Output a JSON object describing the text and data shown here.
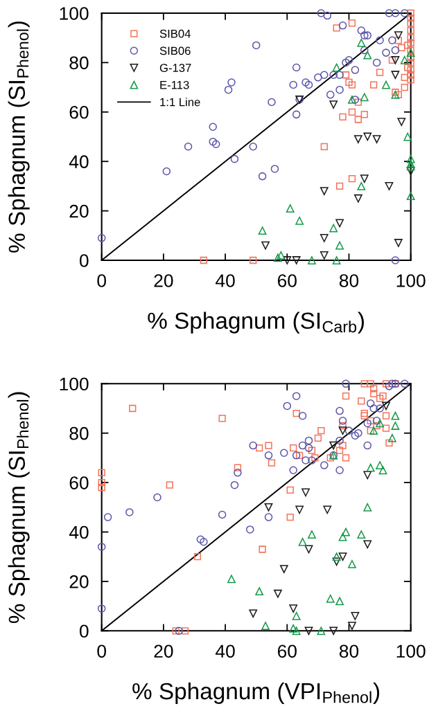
{
  "chart_data": [
    {
      "type": "scatter",
      "xlabel": "% Sphagnum (SI$_{Carb}$)",
      "ylabel": "% Sphagnum (SI$_{Phenol}$)",
      "xlim": [
        0,
        100
      ],
      "ylim": [
        0,
        100
      ],
      "xticks": [
        0,
        20,
        40,
        60,
        80,
        100
      ],
      "yticks": [
        0,
        20,
        40,
        60,
        80,
        100
      ],
      "legend": "top left",
      "series": [
        {
          "name": "SIB04",
          "color": "#f4735a",
          "marker": "square",
          "x": [
            76,
            81,
            100,
            100,
            100,
            100,
            100,
            100,
            100,
            100,
            100,
            100,
            100,
            100,
            96,
            97,
            99,
            94,
            99,
            90,
            79,
            80,
            81,
            88,
            98,
            98,
            95,
            96,
            83,
            81,
            85,
            78,
            83,
            72,
            81,
            77,
            33,
            49
          ],
          "values": [
            94,
            96,
            100,
            98,
            96,
            93,
            90,
            88,
            85,
            82,
            80,
            77,
            75,
            73,
            89,
            86,
            87,
            81,
            78,
            76,
            75,
            72,
            71,
            71,
            74,
            70,
            68,
            67,
            64,
            60,
            59,
            58,
            57,
            46,
            33,
            30,
            0,
            0
          ]
        },
        {
          "name": "SIB06",
          "color": "#5a56aa",
          "marker": "circle",
          "x": [
            50,
            42,
            41,
            36,
            28,
            36,
            37,
            49,
            43,
            21,
            52,
            0,
            56,
            55,
            71,
            73,
            93,
            95,
            98,
            78,
            84,
            85,
            86,
            90,
            94,
            85,
            92,
            95,
            80,
            79,
            89,
            82,
            63,
            62,
            66,
            67,
            70,
            72,
            75,
            77,
            77,
            74,
            82,
            64,
            63,
            95
          ],
          "values": [
            87,
            72,
            69,
            54,
            46,
            48,
            47,
            46,
            41,
            36,
            34,
            9,
            37,
            64,
            100,
            99,
            100,
            100,
            100,
            95,
            93,
            91,
            91,
            89,
            89,
            85,
            84,
            85,
            81,
            80,
            80,
            77,
            78,
            71,
            72,
            71,
            74,
            75,
            75,
            75,
            69,
            67,
            65,
            65,
            59,
            0
          ]
        },
        {
          "name": "G-137",
          "color": "#1a1a1a",
          "marker": "triangle-down",
          "x": [
            96,
            95,
            95,
            64,
            75,
            97,
            83,
            86,
            89,
            100,
            85,
            72,
            83,
            93,
            77,
            72,
            53,
            72,
            60,
            63,
            96
          ],
          "values": [
            91,
            81,
            75,
            65,
            63,
            56,
            49,
            50,
            49,
            36,
            33,
            28,
            25,
            30,
            15,
            9,
            6,
            2,
            0,
            0,
            7
          ]
        },
        {
          "name": "E-113",
          "color": "#16994a",
          "marker": "triangle",
          "x": [
            84,
            86,
            76,
            98,
            100,
            92,
            95,
            81,
            85,
            99,
            100,
            100,
            100,
            100,
            84,
            61,
            64,
            52,
            75,
            77,
            58,
            57,
            68,
            76
          ],
          "values": [
            88,
            83,
            78,
            81,
            84,
            71,
            67,
            65,
            66,
            50,
            41,
            39,
            38,
            26,
            30,
            21,
            16,
            12,
            13,
            6,
            2,
            1,
            0,
            0
          ]
        },
        {
          "name": "1:1 Line",
          "type": "line",
          "color": "#000000",
          "line_style": "solid",
          "x": [
            0,
            100
          ],
          "values": [
            0,
            100
          ]
        }
      ]
    },
    {
      "type": "scatter",
      "xlabel": "% Sphagnum (VPI$_{Phenol}$)",
      "ylabel": "% Sphagnum (SI$_{Phenol}$)",
      "xlim": [
        0,
        100
      ],
      "ylim": [
        0,
        100
      ],
      "xticks": [
        0,
        20,
        40,
        60,
        80,
        100
      ],
      "yticks": [
        0,
        20,
        40,
        60,
        80,
        100
      ],
      "series": [
        {
          "color": "#f4735a",
          "marker": "square",
          "x": [
            10,
            39,
            51,
            54,
            44,
            0,
            0,
            0,
            22,
            52,
            31,
            24,
            27,
            85,
            87,
            88,
            92,
            95,
            88,
            91,
            90,
            79,
            84,
            85,
            85,
            92,
            63,
            87,
            89,
            92,
            87,
            93,
            78,
            78,
            77,
            79,
            71,
            70,
            68,
            69,
            64,
            62,
            74,
            55,
            61,
            61
          ],
          "values": [
            90,
            86,
            74,
            75,
            66,
            64,
            60,
            58,
            59,
            33,
            30,
            0,
            0,
            100,
            100,
            98,
            100,
            100,
            96,
            95,
            94,
            95,
            93,
            88,
            87,
            87,
            88,
            85,
            83,
            82,
            81,
            76,
            83,
            75,
            73,
            70,
            81,
            78,
            73,
            70,
            71,
            74,
            70,
            68,
            57,
            46
          ]
        },
        {
          "color": "#5a56aa",
          "marker": "circle",
          "x": [
            49,
            44,
            43,
            18,
            9,
            2,
            39,
            48,
            32,
            33,
            0,
            0,
            25,
            79,
            93,
            94,
            95,
            98,
            63,
            60,
            65,
            87,
            88,
            90,
            77,
            78,
            86,
            89,
            80,
            82,
            83,
            86,
            67,
            65,
            67,
            63,
            59,
            54,
            66,
            68,
            62,
            72,
            77,
            77,
            75,
            54
          ],
          "values": [
            75,
            64,
            59,
            54,
            48,
            46,
            47,
            41,
            37,
            36,
            34,
            9,
            0,
            100,
            99,
            100,
            100,
            100,
            95,
            91,
            87,
            92,
            90,
            90,
            89,
            85,
            84,
            85,
            81,
            79,
            80,
            75,
            77,
            75,
            74,
            71,
            72,
            71,
            69,
            69,
            65,
            67,
            65,
            77,
            71,
            46
          ]
        },
        {
          "color": "#1a1a1a",
          "marker": "triangle-down",
          "x": [
            92,
            78,
            75,
            86,
            66,
            54,
            64,
            73,
            86,
            67,
            78,
            76,
            59,
            57,
            62,
            82,
            49,
            81,
            67,
            75
          ],
          "values": [
            91,
            81,
            75,
            63,
            56,
            50,
            49,
            49,
            35,
            33,
            30,
            28,
            25,
            15,
            9,
            6,
            7,
            2,
            0,
            0
          ]
        },
        {
          "color": "#16994a",
          "marker": "triangle",
          "x": [
            95,
            95,
            90,
            88,
            94,
            87,
            90,
            91,
            75,
            86,
            68,
            65,
            79,
            78,
            84,
            76,
            81,
            74,
            77,
            63,
            42,
            51,
            53,
            62,
            63,
            71
          ],
          "values": [
            87,
            83,
            84,
            81,
            78,
            66,
            67,
            65,
            71,
            50,
            39,
            36,
            40,
            38,
            39,
            30,
            27,
            13,
            12,
            6,
            21,
            16,
            2,
            1,
            0,
            0
          ]
        },
        {
          "type": "line",
          "color": "#000000",
          "line_style": "solid",
          "x": [
            0,
            100
          ],
          "values": [
            0,
            100
          ]
        }
      ]
    }
  ]
}
